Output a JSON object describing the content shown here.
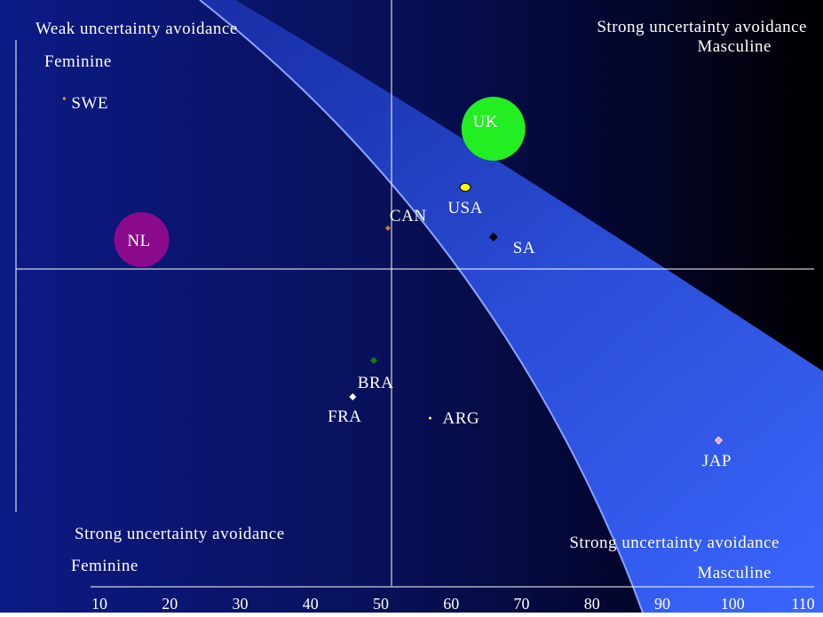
{
  "chart_data": {
    "type": "scatter",
    "title": "",
    "xlabel": "",
    "ylabel": "",
    "xlim": [
      10,
      110
    ],
    "x_ticks": [
      10,
      20,
      30,
      40,
      50,
      60,
      70,
      80,
      90,
      100,
      110
    ],
    "grid": false,
    "legend": "none",
    "quadrant_labels": {
      "top_left": [
        "Weak uncertainty avoidance",
        "Feminine"
      ],
      "top_right": [
        "Strong uncertainty avoidance",
        "Masculine"
      ],
      "bottom_left": [
        "Strong uncertainty avoidance",
        "Feminine"
      ],
      "bottom_right": [
        "Strong uncertainty avoidance",
        "Masculine"
      ]
    },
    "points": [
      {
        "label": "SWE",
        "x": 5,
        "marker": "dot",
        "color": "#ff9900"
      },
      {
        "label": "UK",
        "x": 66,
        "marker": "bubble",
        "color": "#22ee22"
      },
      {
        "label": "USA",
        "x": 62,
        "marker": "ellipse",
        "color": "#ffff00"
      },
      {
        "label": "CAN",
        "x": 51,
        "marker": "diamond",
        "color": "#cc7a33"
      },
      {
        "label": "NL",
        "x": 16,
        "marker": "bubble",
        "color": "#8b0a8b"
      },
      {
        "label": "SA",
        "x": 66,
        "marker": "diamond",
        "color": "#000000"
      },
      {
        "label": "BRA",
        "x": 49,
        "marker": "diamond",
        "color": "#1a7a1a"
      },
      {
        "label": "FRA",
        "x": 46,
        "marker": "diamond",
        "color": "#ffffff"
      },
      {
        "label": "ARG",
        "x": 57,
        "marker": "dot",
        "color": "#ffff66"
      },
      {
        "label": "JAP",
        "x": 98,
        "marker": "diamond",
        "color": "#ff99cc"
      }
    ],
    "colors": {
      "background_left": "#0c1a86",
      "background_right": "#000000",
      "band": "#3a66ff"
    }
  }
}
